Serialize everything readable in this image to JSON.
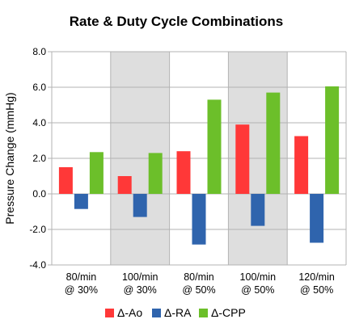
{
  "chart_data": {
    "type": "bar",
    "title": "Rate & Duty Cycle Combinations",
    "ylabel": "Pressure Change (mmHg)",
    "xlabel": "",
    "categories": [
      [
        "80/min",
        "@ 30%"
      ],
      [
        "100/min",
        "@ 30%"
      ],
      [
        "80/min",
        "@ 50%"
      ],
      [
        "100/min",
        "@ 50%"
      ],
      [
        "120/min",
        "@ 50%"
      ]
    ],
    "series": [
      {
        "name": "Δ-Ao",
        "color": "#ff3838",
        "values": [
          1.5,
          1.0,
          2.4,
          3.9,
          3.25
        ]
      },
      {
        "name": "Δ-RA",
        "color": "#2f64ad",
        "values": [
          -0.85,
          -1.3,
          -2.85,
          -1.8,
          -2.75
        ]
      },
      {
        "name": "Δ-CPP",
        "color": "#6cbf2a",
        "values": [
          2.35,
          2.3,
          5.3,
          5.7,
          6.05
        ]
      }
    ],
    "ylim": [
      -4.0,
      8.0
    ],
    "yticks": [
      "-4.0",
      "-2.0",
      "0.0",
      "2.0",
      "4.0",
      "6.0",
      "8.0"
    ],
    "grid": true,
    "shaded_categories": [
      1,
      3
    ],
    "shade_color": "#dedede",
    "legend_position": "bottom"
  }
}
